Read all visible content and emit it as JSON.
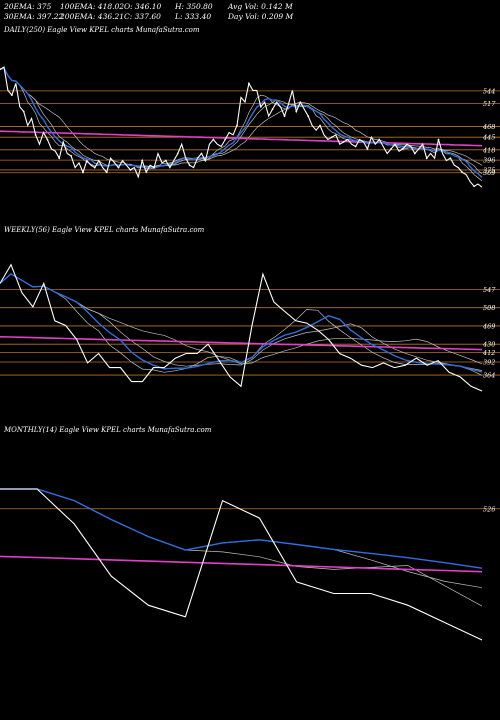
{
  "header": {
    "row1": [
      "20EMA: 375",
      "100EMA: 418.02",
      "O: 346.10",
      "H: 350.80",
      "Avg Vol: 0.142  M"
    ],
    "row2": [
      "30EMA: 397.22",
      "200EMA: 436.21",
      "C: 337.60",
      "L: 333.40",
      "Day Vol: 0.209  M"
    ]
  },
  "panels": [
    {
      "label": "DAILY(250) Eagle   View  KPEL  charts MunafaSutra.com",
      "levels": [
        "544",
        "517",
        "468",
        "445",
        "418",
        "396",
        "375",
        "369"
      ]
    },
    {
      "label": "WEEKLY(56) Eagle   View  KPEL  charts MunafaSutra.com",
      "levels": [
        "547",
        "508",
        "469",
        "430",
        "412",
        "392",
        "364"
      ]
    },
    {
      "label": "MONTHLY(14) Eagle   View  KPEL  charts MunafaSutra.com",
      "levels": [
        "526"
      ]
    }
  ],
  "colors": {
    "price": "#ffffff",
    "ema_blue": "#2f6fe0",
    "ema_pink": "#e040c8",
    "level_line": "#b8732a",
    "ema_grey": "#bfbfbf"
  },
  "chart_data": [
    {
      "type": "line",
      "title": "DAILY(250)",
      "ylim": [
        300,
        610
      ],
      "levels": [
        544,
        517,
        468,
        445,
        418,
        396,
        375,
        369
      ],
      "series": [
        {
          "values": [
            590,
            595,
            545,
            535,
            560,
            510,
            500,
            470,
            485,
            450,
            430,
            455,
            440,
            420,
            415,
            400,
            435,
            410,
            405,
            380,
            390,
            370,
            395,
            385,
            380,
            395,
            380,
            370,
            400,
            390,
            380,
            395,
            385,
            375,
            380,
            360,
            395,
            370,
            385,
            380,
            410,
            390,
            395,
            380,
            395,
            410,
            430,
            400,
            385,
            380,
            400,
            410,
            395,
            430,
            440,
            430,
            425,
            440,
            455,
            450,
            470,
            530,
            520,
            560,
            545,
            545,
            510,
            520,
            490,
            505,
            520,
            510,
            490,
            515,
            545,
            500,
            520,
            505,
            490,
            470,
            460,
            470,
            450,
            440,
            445,
            450,
            430,
            435,
            440,
            430,
            425,
            440,
            435,
            420,
            445,
            430,
            440,
            425,
            410,
            420,
            430,
            415,
            420,
            430,
            425,
            410,
            420,
            430,
            400,
            410,
            400,
            440,
            410,
            395,
            400,
            385,
            380,
            370,
            365,
            350,
            340,
            345,
            338
          ]
        }
      ]
    },
    {
      "type": "line",
      "title": "WEEKLY(56)",
      "ylim": [
        300,
        610
      ],
      "levels": [
        547,
        508,
        469,
        430,
        412,
        392,
        364
      ],
      "series": [
        {
          "values": [
            560,
            600,
            540,
            510,
            560,
            480,
            470,
            440,
            390,
            410,
            380,
            380,
            350,
            350,
            380,
            380,
            400,
            410,
            410,
            430,
            395,
            360,
            340,
            470,
            580,
            520,
            500,
            480,
            475,
            460,
            440,
            410,
            400,
            385,
            380,
            390,
            380,
            385,
            400,
            385,
            395,
            370,
            360,
            340,
            330
          ]
        }
      ]
    },
    {
      "type": "line",
      "title": "MONTHLY(14)",
      "ylim": [
        300,
        610
      ],
      "levels": [
        526
      ],
      "series": [
        {
          "values": [
            560,
            560,
            500,
            410,
            360,
            340,
            540,
            510,
            400,
            380,
            380,
            360,
            330,
            300
          ]
        }
      ]
    }
  ]
}
